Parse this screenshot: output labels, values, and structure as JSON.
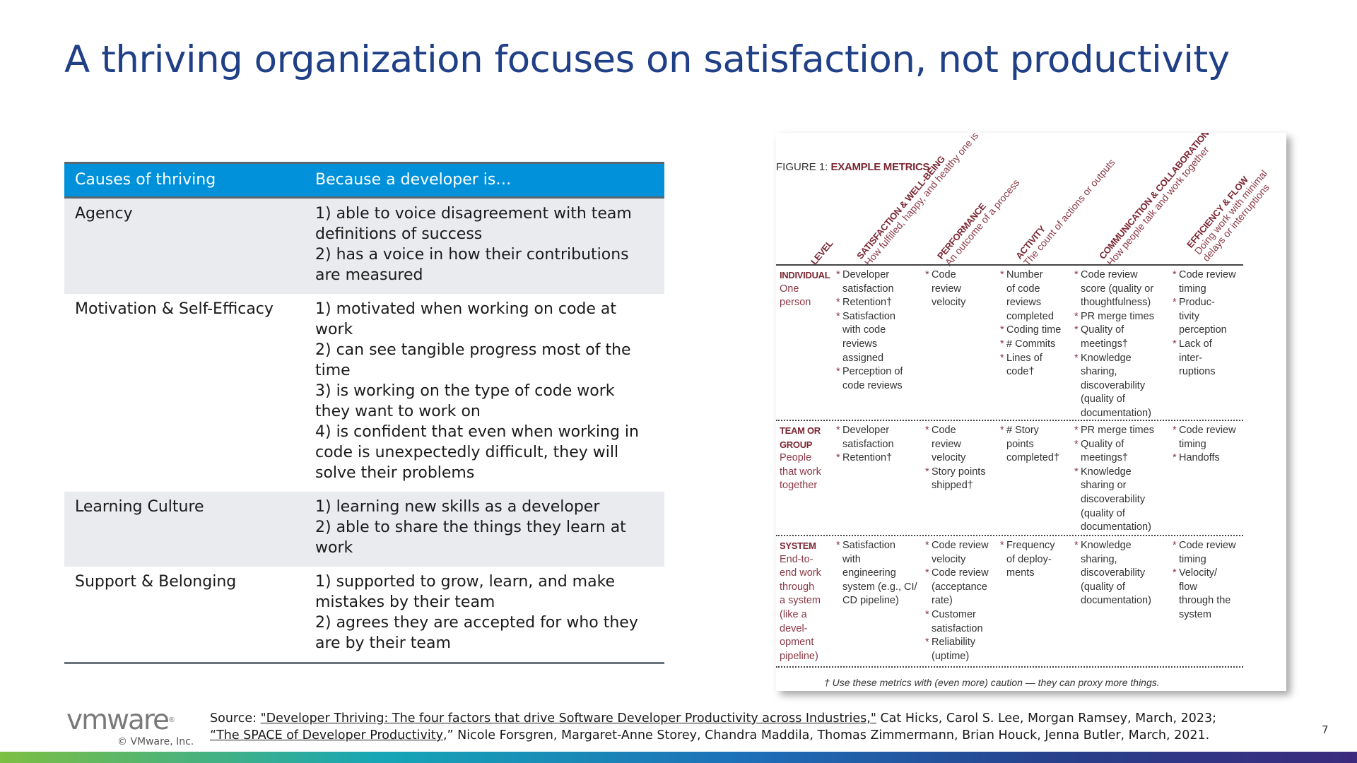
{
  "title": "A thriving organization focuses on satisfaction, not productivity",
  "table": {
    "headers": [
      "Causes of thriving",
      "Because a developer is…"
    ],
    "rows": [
      {
        "cause": "Agency",
        "lines": [
          "1) able to voice disagreement with team",
          "definitions of success",
          "2) has a voice in how their contributions",
          "are measured"
        ]
      },
      {
        "cause": "Motivation & Self-Efficacy",
        "lines": [
          "1) motivated when working on code at",
          "work",
          "2) can see tangible progress most of the",
          "time",
          "3) is working on the type of code work",
          "they want to work on",
          "4) is confident that even when working in",
          "code is unexpectedly difficult, they will",
          "solve their problems"
        ]
      },
      {
        "cause": "Learning Culture",
        "lines": [
          "1) learning new skills as a developer",
          "2) able to share the things they learn at",
          "work"
        ]
      },
      {
        "cause": "Support & Belonging",
        "lines": [
          "1) supported to grow, learn, and make",
          "mistakes by their team",
          "2) agrees they are accepted for who they",
          "are by their team"
        ]
      }
    ]
  },
  "figure": {
    "caption_prefix": "FIGURE 1:",
    "caption_title": "EXAMPLE METRICS",
    "headers": [
      {
        "title": "LEVEL",
        "subtitle": ""
      },
      {
        "title": "SATISFACTION & WELL-BEING",
        "subtitle": "How fulfilled, happy, and healthy one is"
      },
      {
        "title": "PERFORMANCE",
        "subtitle": "An outcome of a process"
      },
      {
        "title": "ACTIVITY",
        "subtitle": "The count of actions or outputs"
      },
      {
        "title": "COMMUNICATION & COLLABORATION",
        "subtitle": "How people talk and work together"
      },
      {
        "title": "EFFICIENCY & FLOW",
        "subtitle": "Doing work with minimal",
        "subtitle2": "delays or interruptions"
      }
    ],
    "rows": [
      {
        "level": "INDIVIDUAL",
        "level_desc": [
          "One",
          "person"
        ],
        "cells": [
          [
            [
              "Developer",
              "satisfaction"
            ],
            [
              "Retention†"
            ],
            [
              "Satisfaction",
              "with code",
              "reviews",
              "assigned"
            ],
            [
              "Perception of",
              "code reviews"
            ]
          ],
          [
            [
              "Code",
              "review",
              "velocity"
            ]
          ],
          [
            [
              "Number",
              "of code",
              "reviews",
              "completed"
            ],
            [
              "Coding time"
            ],
            [
              "# Commits"
            ],
            [
              "Lines of",
              "code†"
            ]
          ],
          [
            [
              "Code review",
              "score (quality or",
              "thoughtfulness)"
            ],
            [
              "PR merge times"
            ],
            [
              "Quality of",
              "meetings†"
            ],
            [
              "Knowledge",
              "sharing,",
              "discoverability",
              "(quality of",
              "documentation)"
            ]
          ],
          [
            [
              "Code review",
              "timing"
            ],
            [
              "Produc-",
              "tivity",
              "perception"
            ],
            [
              "Lack of",
              "inter-",
              "ruptions"
            ]
          ]
        ]
      },
      {
        "level": "TEAM OR GROUP",
        "level_lines": [
          "TEAM OR",
          "GROUP"
        ],
        "level_desc": [
          "People",
          "that work",
          "together"
        ],
        "cells": [
          [
            [
              "Developer",
              "satisfaction"
            ],
            [
              "Retention†"
            ]
          ],
          [
            [
              "Code",
              "review",
              "velocity"
            ],
            [
              "Story points",
              "shipped†"
            ]
          ],
          [
            [
              "# Story",
              "points",
              "completed†"
            ]
          ],
          [
            [
              "PR merge times"
            ],
            [
              "Quality of",
              "meetings†"
            ],
            [
              "Knowledge",
              "sharing or",
              "discoverability",
              "(quality of",
              "documentation)"
            ]
          ],
          [
            [
              "Code review",
              "timing"
            ],
            [
              "Handoffs"
            ]
          ]
        ]
      },
      {
        "level": "SYSTEM",
        "level_desc": [
          "End-to-",
          "end work",
          "through",
          "a system",
          "(like a",
          "devel-",
          "opment",
          "pipeline)"
        ],
        "cells": [
          [
            [
              "Satisfaction",
              "with",
              "engineering",
              "system (e.g., CI/",
              "CD pipeline)"
            ]
          ],
          [
            [
              "Code review",
              "velocity"
            ],
            [
              "Code review",
              "(acceptance",
              "rate)"
            ],
            [
              "Customer",
              "satisfaction"
            ],
            [
              "Reliability",
              "(uptime)"
            ]
          ],
          [
            [
              "Frequency",
              "of deploy-",
              "ments"
            ]
          ],
          [
            [
              "Knowledge",
              "sharing,",
              "discoverability",
              "(quality of",
              "documentation)"
            ]
          ],
          [
            [
              "Code review",
              "timing"
            ],
            [
              "Velocity/",
              "flow",
              "through the",
              "system"
            ]
          ]
        ]
      }
    ],
    "footnote": "† Use these metrics with (even more) caution — they can proxy more things."
  },
  "footer": {
    "logo": "vmware",
    "logo_mark": "®",
    "copyright": "© VMware, Inc.",
    "source_label": "Source:",
    "source_link1": "\"Developer Thriving: The four factors that drive Software Developer Productivity across Industries,\"",
    "source_rest1": " Cat Hicks, Carol S. Lee, Morgan Ramsey, March, 2023;",
    "source_link2": "“The SPACE of Developer Productivity",
    "source_rest2": ",” Nicole Forsgren, Margaret-Anne Storey, Chandra Maddila, Thomas Zimmermann, Brian Houck, Jenna Butler, March, 2021.",
    "page_number": "7"
  },
  "colors": {
    "title": "#1f3f86",
    "header_bg": "#0091da",
    "row_shade": "#e9ebee",
    "figure_accent": "#7a2733"
  }
}
